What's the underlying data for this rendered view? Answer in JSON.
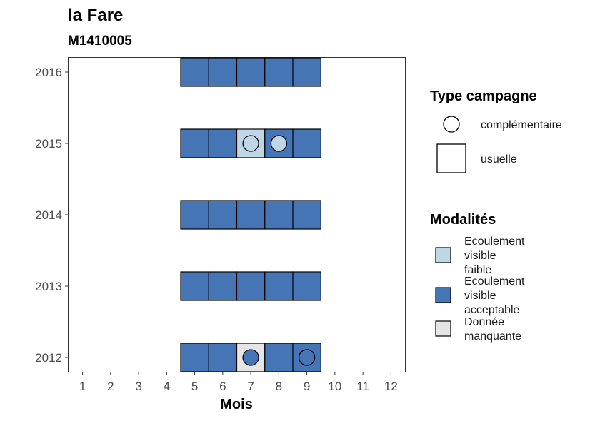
{
  "chart_data": {
    "type": "heatmap",
    "title": "la Fare",
    "subtitle": "M1410005",
    "xlabel": "Mois",
    "ylabel": "",
    "x_ticks": [
      1,
      2,
      3,
      4,
      5,
      6,
      7,
      8,
      9,
      10,
      11,
      12
    ],
    "y_ticks": [
      2012,
      2013,
      2014,
      2015,
      2016
    ],
    "xlim": [
      0.5,
      12.5
    ],
    "ylim": [
      2011.8,
      2016.2
    ],
    "grid": false,
    "legend_placement": "right",
    "colors": {
      "Ecoulement visible faible": "#bdd7e7",
      "Ecoulement visible acceptable": "#4575b4",
      "Donnée manquante": "#e5e5e5"
    },
    "cells": [
      {
        "year": 2016,
        "month": 5,
        "modalite": "Ecoulement visible acceptable",
        "campagne": "usuelle"
      },
      {
        "year": 2016,
        "month": 6,
        "modalite": "Ecoulement visible acceptable",
        "campagne": "usuelle"
      },
      {
        "year": 2016,
        "month": 7,
        "modalite": "Ecoulement visible acceptable",
        "campagne": "usuelle"
      },
      {
        "year": 2016,
        "month": 8,
        "modalite": "Ecoulement visible acceptable",
        "campagne": "usuelle"
      },
      {
        "year": 2016,
        "month": 9,
        "modalite": "Ecoulement visible acceptable",
        "campagne": "usuelle"
      },
      {
        "year": 2015,
        "month": 5,
        "modalite": "Ecoulement visible acceptable",
        "campagne": "usuelle"
      },
      {
        "year": 2015,
        "month": 6,
        "modalite": "Ecoulement visible acceptable",
        "campagne": "usuelle"
      },
      {
        "year": 2015,
        "month": 7,
        "modalite": "Ecoulement visible faible",
        "campagne": "usuelle"
      },
      {
        "year": 2015,
        "month": 7,
        "modalite": "Ecoulement visible faible",
        "campagne": "complémentaire"
      },
      {
        "year": 2015,
        "month": 8,
        "modalite": "Ecoulement visible acceptable",
        "campagne": "usuelle"
      },
      {
        "year": 2015,
        "month": 8,
        "modalite": "Ecoulement visible faible",
        "campagne": "complémentaire"
      },
      {
        "year": 2015,
        "month": 9,
        "modalite": "Ecoulement visible acceptable",
        "campagne": "usuelle"
      },
      {
        "year": 2014,
        "month": 5,
        "modalite": "Ecoulement visible acceptable",
        "campagne": "usuelle"
      },
      {
        "year": 2014,
        "month": 6,
        "modalite": "Ecoulement visible acceptable",
        "campagne": "usuelle"
      },
      {
        "year": 2014,
        "month": 7,
        "modalite": "Ecoulement visible acceptable",
        "campagne": "usuelle"
      },
      {
        "year": 2014,
        "month": 8,
        "modalite": "Ecoulement visible acceptable",
        "campagne": "usuelle"
      },
      {
        "year": 2014,
        "month": 9,
        "modalite": "Ecoulement visible acceptable",
        "campagne": "usuelle"
      },
      {
        "year": 2013,
        "month": 5,
        "modalite": "Ecoulement visible acceptable",
        "campagne": "usuelle"
      },
      {
        "year": 2013,
        "month": 6,
        "modalite": "Ecoulement visible acceptable",
        "campagne": "usuelle"
      },
      {
        "year": 2013,
        "month": 7,
        "modalite": "Ecoulement visible acceptable",
        "campagne": "usuelle"
      },
      {
        "year": 2013,
        "month": 8,
        "modalite": "Ecoulement visible acceptable",
        "campagne": "usuelle"
      },
      {
        "year": 2013,
        "month": 9,
        "modalite": "Ecoulement visible acceptable",
        "campagne": "usuelle"
      },
      {
        "year": 2012,
        "month": 5,
        "modalite": "Ecoulement visible acceptable",
        "campagne": "usuelle"
      },
      {
        "year": 2012,
        "month": 6,
        "modalite": "Ecoulement visible acceptable",
        "campagne": "usuelle"
      },
      {
        "year": 2012,
        "month": 7,
        "modalite": "Donnée manquante",
        "campagne": "usuelle"
      },
      {
        "year": 2012,
        "month": 7,
        "modalite": "Ecoulement visible acceptable",
        "campagne": "complémentaire"
      },
      {
        "year": 2012,
        "month": 8,
        "modalite": "Ecoulement visible acceptable",
        "campagne": "usuelle"
      },
      {
        "year": 2012,
        "month": 9,
        "modalite": "Ecoulement visible acceptable",
        "campagne": "usuelle"
      },
      {
        "year": 2012,
        "month": 9,
        "modalite": "Ecoulement visible acceptable",
        "campagne": "complémentaire"
      }
    ]
  },
  "legend": {
    "campagne": {
      "title": "Type campagne",
      "items": [
        {
          "key": "complémentaire",
          "label": "complémentaire",
          "shape": "circle"
        },
        {
          "key": "usuelle",
          "label": "usuelle",
          "shape": "square"
        }
      ]
    },
    "modalites": {
      "title": "Modalités",
      "items": [
        {
          "key": "Ecoulement visible faible",
          "lines": [
            "Ecoulement",
            "visible",
            "faible"
          ],
          "color": "#bdd7e7"
        },
        {
          "key": "Ecoulement visible acceptable",
          "lines": [
            "Ecoulement",
            "visible",
            "acceptable"
          ],
          "color": "#4575b4"
        },
        {
          "key": "Donnée manquante",
          "lines": [
            "Donnée",
            "manquante"
          ],
          "color": "#e5e5e5"
        }
      ]
    }
  }
}
